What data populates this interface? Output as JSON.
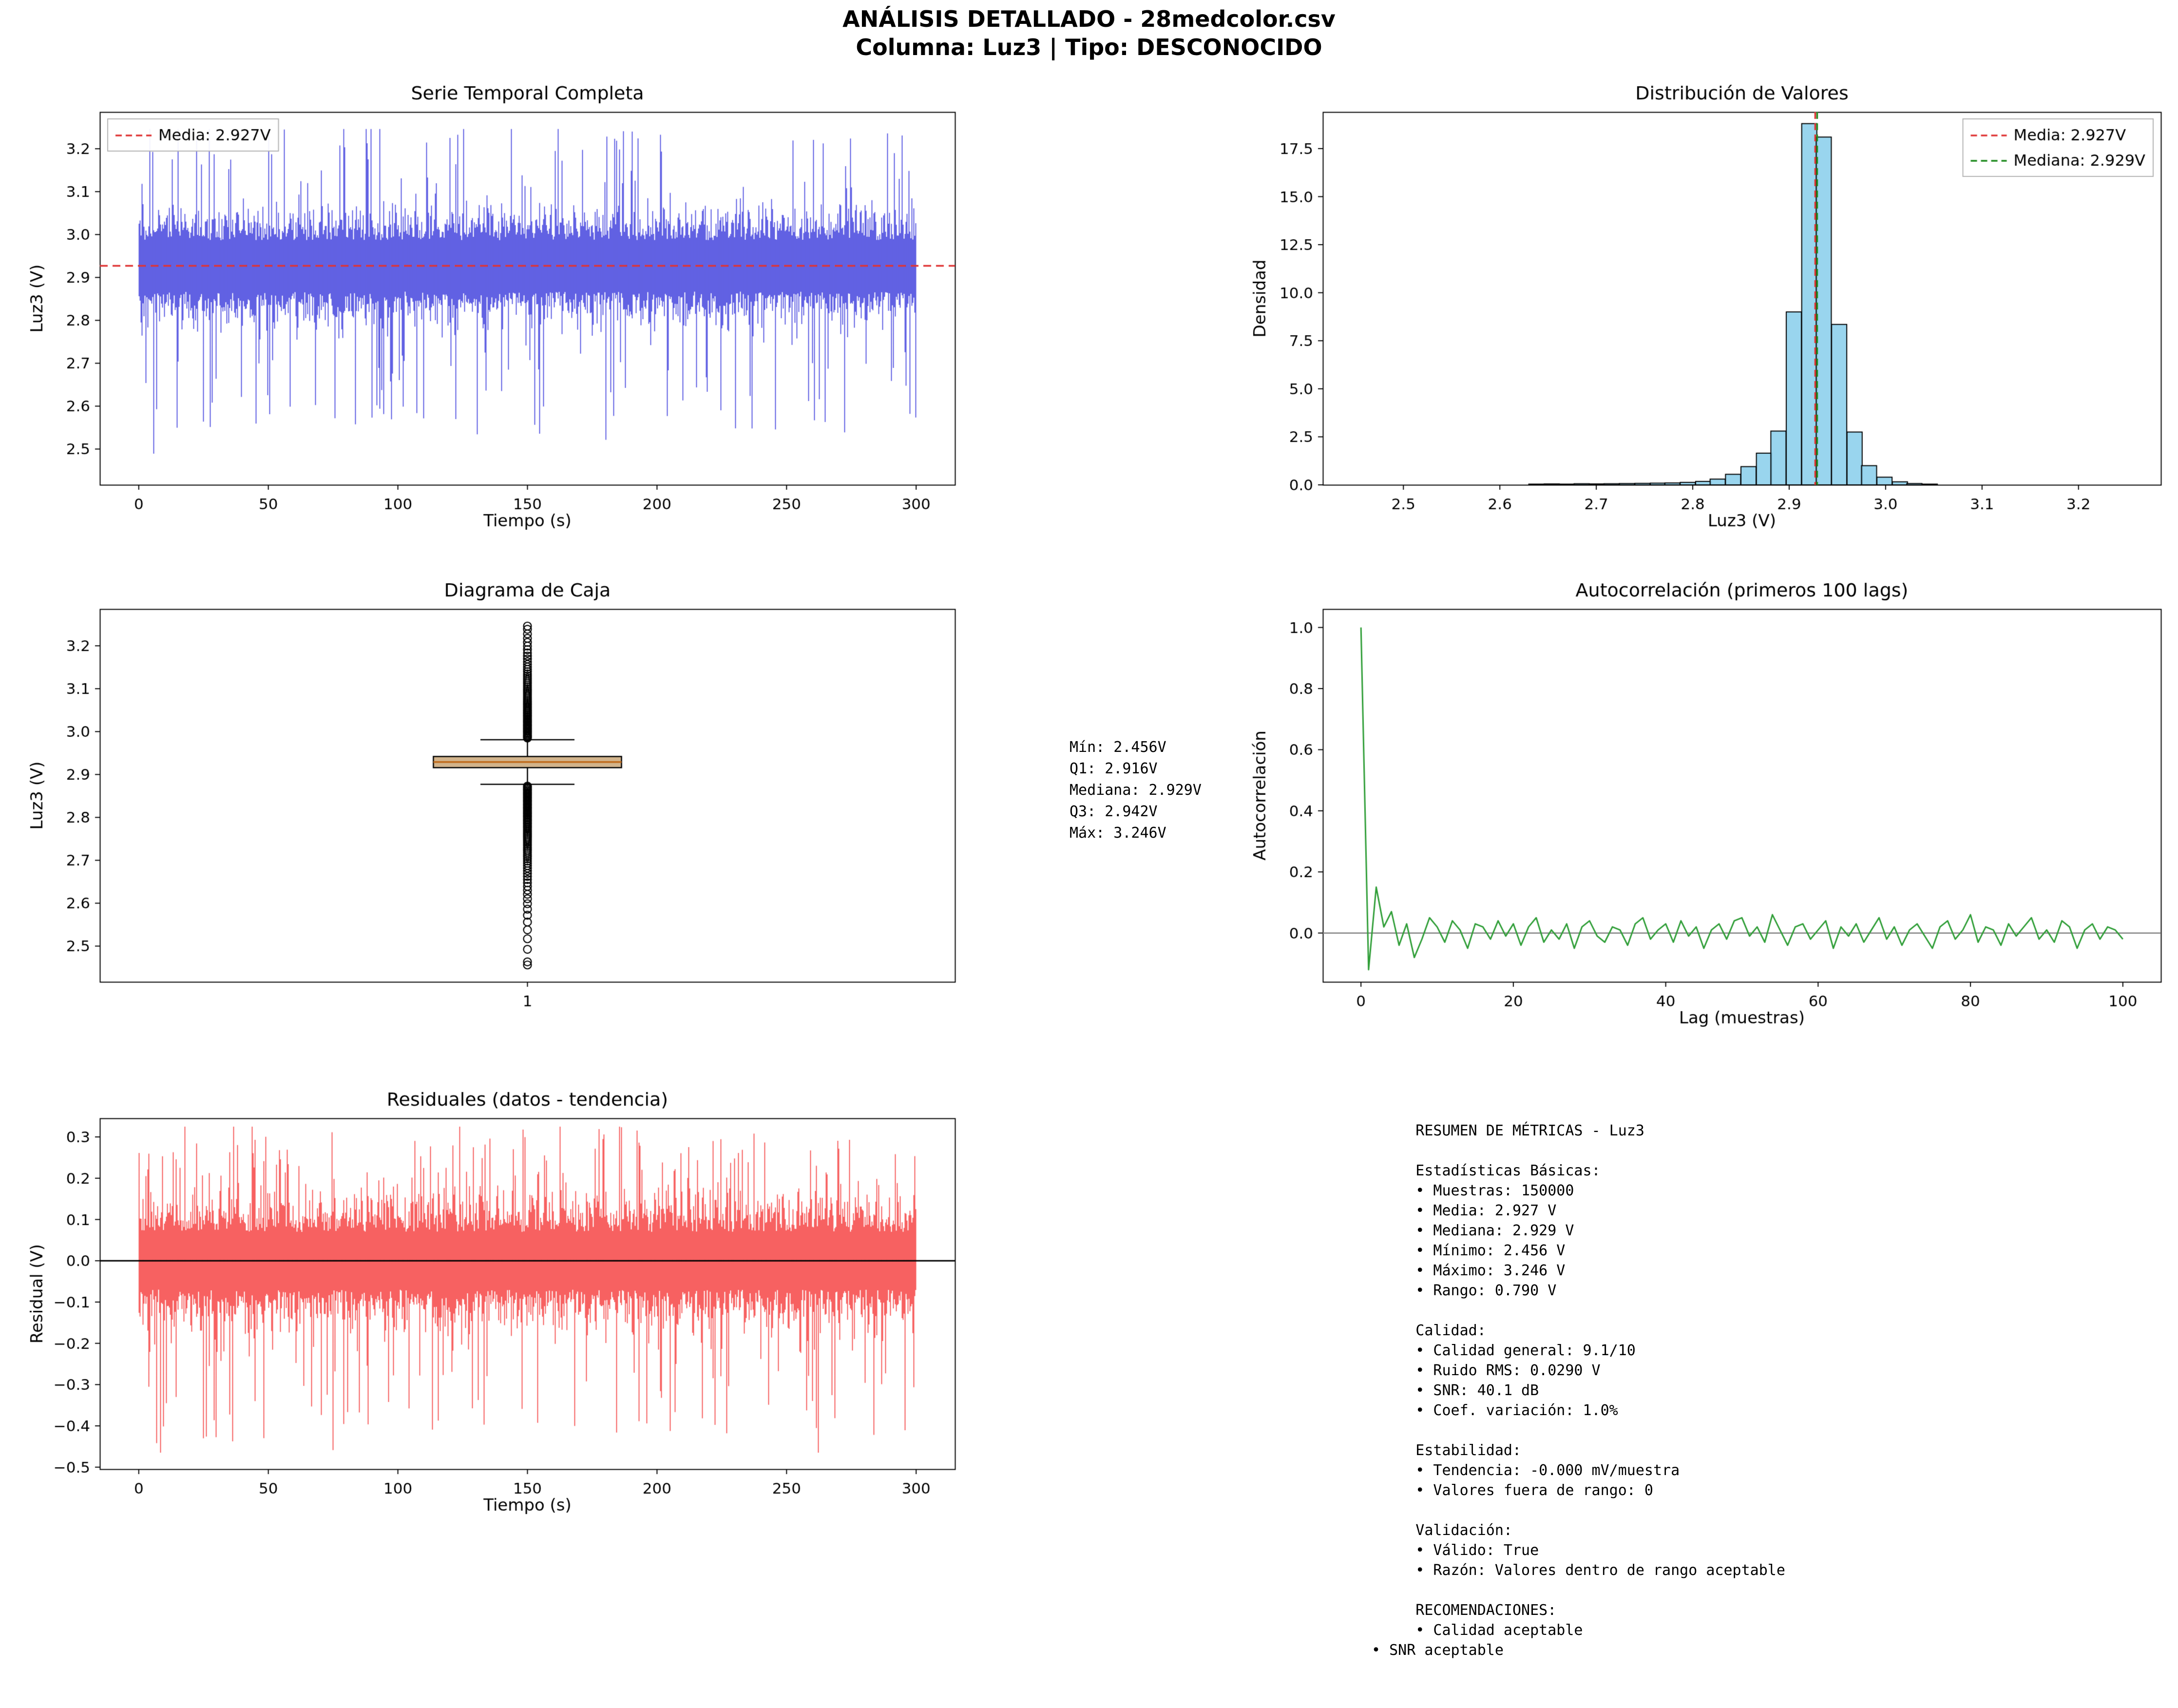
{
  "header": {
    "title": "ANÁLISIS DETALLADO - 28medcolor.csv",
    "subtitle": "Columna: Luz3 | Tipo: DESCONOCIDO"
  },
  "chart_data": [
    {
      "id": "time_series",
      "type": "line",
      "title": "Serie Temporal Completa",
      "xlabel": "Tiempo (s)",
      "ylabel": "Luz3 (V)",
      "xlim": [
        -15,
        315
      ],
      "ylim": [
        2.4165,
        3.2855
      ],
      "xticks": [
        0,
        50,
        100,
        150,
        200,
        250,
        300
      ],
      "yticks": [
        2.5,
        2.6,
        2.7,
        2.8,
        2.9,
        3.0,
        3.1,
        3.2
      ],
      "xtickfmt": "int",
      "x_range": [
        0,
        300
      ],
      "center": 2.927,
      "line_color": "#3b3bdc",
      "series_stats": {
        "n_samples": 150000,
        "mean": 2.927,
        "median": 2.929,
        "std_rms": 0.029,
        "min": 2.456,
        "max": 3.246
      },
      "mean_line": {
        "value": 2.927,
        "color": "#e03434",
        "label": "Media: 2.927V"
      },
      "legend": {
        "position": "upper-left",
        "entries": [
          {
            "label": "Media: 2.927V",
            "color": "#e03434",
            "dash": true
          }
        ]
      },
      "render": {
        "seed": 42,
        "base": 0.06,
        "var": 0.04,
        "spike_p": 0.15,
        "spike_hi": 0.27,
        "spike_lo": 0.3,
        "clip": [
          2.456,
          3.246
        ]
      }
    },
    {
      "id": "histogram",
      "type": "bar",
      "title": "Distribución de Valores",
      "xlabel": "Luz3 (V)",
      "ylabel": "Densidad",
      "xlim": [
        2.4165,
        3.2855
      ],
      "ylim": [
        0,
        19.4
      ],
      "xticks": [
        2.5,
        2.6,
        2.7,
        2.8,
        2.9,
        3.0,
        3.1,
        3.2
      ],
      "yticks": [
        0.0,
        2.5,
        5.0,
        7.5,
        10.0,
        12.5,
        15.0,
        17.5
      ],
      "bar_fill": "rgba(135,206,235,0.85)",
      "bin_width": 0.0157,
      "bins": [
        [
          2.63,
          0.04
        ],
        [
          2.646,
          0.05
        ],
        [
          2.661,
          0.04
        ],
        [
          2.677,
          0.06
        ],
        [
          2.693,
          0.05
        ],
        [
          2.708,
          0.06
        ],
        [
          2.724,
          0.07
        ],
        [
          2.74,
          0.08
        ],
        [
          2.756,
          0.09
        ],
        [
          2.771,
          0.1
        ],
        [
          2.787,
          0.13
        ],
        [
          2.803,
          0.18
        ],
        [
          2.818,
          0.3
        ],
        [
          2.834,
          0.55
        ],
        [
          2.85,
          0.95
        ],
        [
          2.866,
          1.65
        ],
        [
          2.881,
          2.8
        ],
        [
          2.897,
          9.0
        ],
        [
          2.913,
          18.8
        ],
        [
          2.928,
          18.1
        ],
        [
          2.944,
          8.35
        ],
        [
          2.96,
          2.75
        ],
        [
          2.975,
          1.0
        ],
        [
          2.991,
          0.4
        ],
        [
          3.007,
          0.16
        ],
        [
          3.022,
          0.07
        ],
        [
          3.038,
          0.04
        ]
      ],
      "mean_line": {
        "value": 2.927,
        "color": "#e03434",
        "label": "Media: 2.927V"
      },
      "median_line": {
        "value": 2.929,
        "color": "#1e8a1e",
        "label": "Mediana: 2.929V"
      }
    },
    {
      "id": "boxplot",
      "type": "boxplot",
      "title": "Diagrama de Caja",
      "xlabel": "",
      "ylabel": "Luz3 (V)",
      "xlim": [
        0.5,
        1.5
      ],
      "ylim": [
        2.4165,
        3.2855
      ],
      "xticks": [
        1
      ],
      "yticks": [
        2.5,
        2.6,
        2.7,
        2.8,
        2.9,
        3.0,
        3.1,
        3.2
      ],
      "xtickfmt": "int",
      "min": 2.456,
      "max": 3.246,
      "box_fill": "#d2b48c",
      "median_color": "#c06a1a",
      "box": {
        "q1": 2.916,
        "median": 2.929,
        "q3": 2.942,
        "whisker_low": 2.877,
        "whisker_high": 2.981,
        "width": 0.22,
        "cap_width": 0.11
      },
      "outlier_gen": {
        "low_base": 0.0026,
        "low_exp": 3,
        "low_max": 0.035,
        "high_base": 0.0026,
        "high_exp": 2.5,
        "high_max": 0.01
      }
    },
    {
      "id": "acf",
      "type": "line",
      "title": "Autocorrelación (primeros 100 lags)",
      "xlabel": "Lag (muestras)",
      "ylabel": "Autocorrelación",
      "xlim": [
        -5,
        105
      ],
      "ylim": [
        -0.16,
        1.06
      ],
      "xticks": [
        0,
        20,
        40,
        60,
        80,
        100
      ],
      "yticks": [
        0.0,
        0.2,
        0.4,
        0.6,
        0.8,
        1.0
      ],
      "xtickfmt": "int",
      "line_color": "#2f9e37",
      "zero_line_color": "#808080",
      "values": [
        1.0,
        -0.12,
        0.15,
        0.02,
        0.07,
        -0.04,
        0.03,
        -0.08,
        -0.02,
        0.05,
        0.02,
        -0.03,
        0.04,
        0.01,
        -0.05,
        0.03,
        0.02,
        -0.02,
        0.04,
        -0.01,
        0.03,
        -0.04,
        0.02,
        0.05,
        -0.03,
        0.01,
        -0.02,
        0.03,
        -0.05,
        0.02,
        0.04,
        -0.01,
        -0.03,
        0.02,
        0.01,
        -0.04,
        0.03,
        0.05,
        -0.02,
        0.01,
        0.03,
        -0.03,
        0.04,
        -0.01,
        0.02,
        -0.05,
        0.01,
        0.03,
        -0.02,
        0.04,
        0.05,
        -0.01,
        0.02,
        -0.03,
        0.06,
        0.01,
        -0.04,
        0.02,
        0.03,
        -0.02,
        0.01,
        0.04,
        -0.05,
        0.02,
        -0.01,
        0.03,
        -0.03,
        0.01,
        0.05,
        -0.02,
        0.02,
        -0.04,
        0.01,
        0.03,
        -0.01,
        -0.05,
        0.02,
        0.04,
        -0.02,
        0.01,
        0.06,
        -0.03,
        0.02,
        0.01,
        -0.04,
        0.03,
        -0.01,
        0.02,
        0.05,
        -0.02,
        0.01,
        -0.03,
        0.04,
        0.02,
        -0.05,
        0.01,
        0.03,
        -0.02,
        0.02,
        0.01,
        -0.02
      ]
    },
    {
      "id": "residuals",
      "type": "line",
      "title": "Residuales (datos - tendencia)",
      "xlabel": "Tiempo (s)",
      "ylabel": "Residual (V)",
      "xlim": [
        -15,
        315
      ],
      "ylim": [
        -0.505,
        0.345
      ],
      "xticks": [
        0,
        50,
        100,
        150,
        200,
        250,
        300
      ],
      "yticks": [
        -0.5,
        -0.4,
        -0.3,
        -0.2,
        -0.1,
        0.0,
        0.1,
        0.2,
        0.3
      ],
      "xtickfmt": "int",
      "x_range": [
        0,
        300
      ],
      "center": 0,
      "line_color": "#f53b3b",
      "zero_line": {
        "value": 0,
        "color": "#000000"
      },
      "series_stats": {
        "mean": 0.0,
        "approx_min": -0.465,
        "approx_max": 0.32
      },
      "render": {
        "seed": 99,
        "base": 0.07,
        "var": 0.05,
        "spike_p": 0.15,
        "spike_hi": 0.2,
        "spike_lo": 0.34,
        "clip": [
          -0.465,
          0.325
        ]
      }
    }
  ],
  "box_stats": {
    "text": "Mín: 2.456V\nQ1: 2.916V\nMediana: 2.929V\nQ3: 2.942V\nMáx: 3.246V"
  },
  "summary": {
    "text": "     RESUMEN DE MÉTRICAS - Luz3\n\n     Estadísticas Básicas:\n     • Muestras: 150000\n     • Media: 2.927 V\n     • Mediana: 2.929 V\n     • Mínimo: 2.456 V\n     • Máximo: 3.246 V\n     • Rango: 0.790 V\n\n     Calidad:\n     • Calidad general: 9.1/10\n     • Ruido RMS: 0.0290 V\n     • SNR: 40.1 dB\n     • Coef. variación: 1.0%\n\n     Estabilidad:\n     • Tendencia: -0.000 mV/muestra\n     • Valores fuera de rango: 0\n\n     Validación:\n     • Válido: True\n     • Razón: Valores dentro de rango aceptable\n\n     RECOMENDACIONES:\n     • Calidad aceptable\n• SNR aceptable"
  }
}
